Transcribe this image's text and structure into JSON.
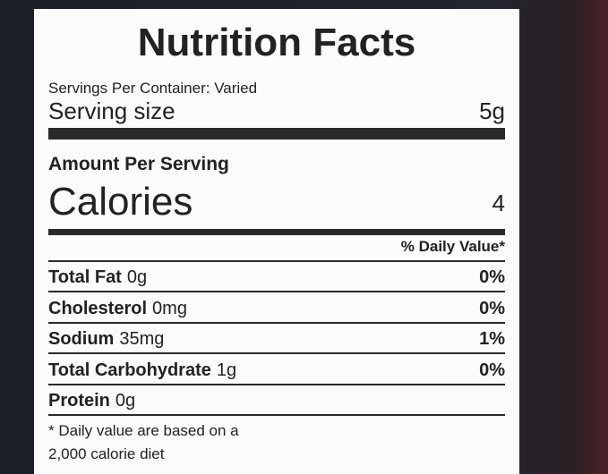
{
  "title": "Nutrition Facts",
  "servings_per_container": "Servings Per Container: Varied",
  "serving_size": {
    "label": "Serving size",
    "value": "5g"
  },
  "amount_per_serving": "Amount Per Serving",
  "calories": {
    "label": "Calories",
    "value": "4"
  },
  "daily_value_header": "% Daily Value*",
  "nutrients": [
    {
      "name": "Total Fat",
      "amount": "0g",
      "percent": "0%"
    },
    {
      "name": "Cholesterol",
      "amount": "0mg",
      "percent": "0%"
    },
    {
      "name": "Sodium",
      "amount": "35mg",
      "percent": "1%"
    },
    {
      "name": "Total Carbohydrate",
      "amount": "1g",
      "percent": "0%"
    },
    {
      "name": "Protein",
      "amount": "0g"
    }
  ],
  "footnote": [
    "* Daily value are based on a",
    "2,000 calorie diet"
  ]
}
